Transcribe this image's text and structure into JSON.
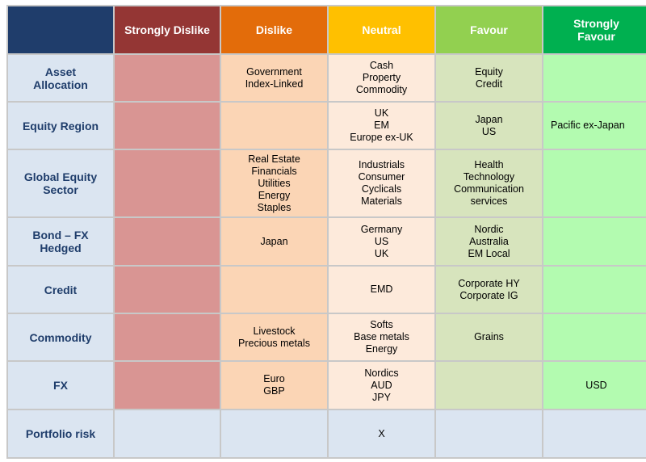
{
  "headers": {
    "strongly_dislike": "Strongly Dislike",
    "dislike": "Dislike",
    "neutral": "Neutral",
    "favour": "Favour",
    "strongly_favour": "Strongly\nFavour"
  },
  "header_colors": {
    "strongly_dislike": "#943634",
    "dislike": "#e36c0a",
    "neutral": "#ffc000",
    "favour": "#92d050",
    "strongly_favour": "#00b050"
  },
  "rows": [
    {
      "label": "Asset\nAllocation",
      "strongly_dislike": "",
      "dislike": "Government\nIndex-Linked",
      "neutral": "Cash\nProperty\nCommodity",
      "favour": "Equity\nCredit",
      "strongly_favour": ""
    },
    {
      "label": "Equity Region",
      "strongly_dislike": "",
      "dislike": "",
      "neutral": "UK\nEM\nEurope ex-UK",
      "favour": "Japan\nUS",
      "strongly_favour": "Pacific ex-Japan"
    },
    {
      "label": "Global Equity\nSector",
      "strongly_dislike": "",
      "dislike": "Real Estate\nFinancials\nUtilities\nEnergy\nStaples",
      "neutral": "Industrials\nConsumer\nCyclicals\nMaterials",
      "favour": "Health\nTechnology\nCommunication\nservices",
      "strongly_favour": ""
    },
    {
      "label": "Bond – FX\nHedged",
      "strongly_dislike": "",
      "dislike": "Japan",
      "neutral": "Germany\nUS\nUK",
      "favour": "Nordic\nAustralia\nEM Local",
      "strongly_favour": ""
    },
    {
      "label": "Credit",
      "strongly_dislike": "",
      "dislike": "",
      "neutral": "EMD",
      "favour": "Corporate HY\nCorporate IG",
      "strongly_favour": ""
    },
    {
      "label": "Commodity",
      "strongly_dislike": "",
      "dislike": "Livestock\nPrecious metals",
      "neutral": "Softs\nBase metals\nEnergy",
      "favour": "Grains",
      "strongly_favour": ""
    },
    {
      "label": "FX",
      "strongly_dislike": "",
      "dislike": "Euro\nGBP",
      "neutral": "Nordics\nAUD\nJPY",
      "favour": "",
      "strongly_favour": "USD"
    },
    {
      "label": "Portfolio risk",
      "strongly_dislike": "",
      "dislike": "",
      "neutral": "X",
      "favour": "",
      "strongly_favour": ""
    }
  ]
}
